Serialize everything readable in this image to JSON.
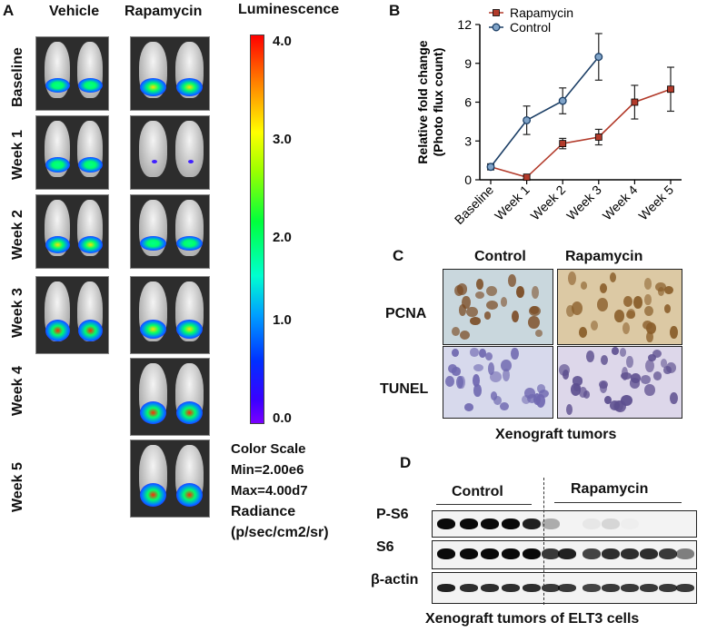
{
  "panel_a": {
    "letter": "A",
    "col_vehicle": "Vehicle",
    "col_rapamycin": "Rapamycin",
    "luminescence": "Luminescence",
    "rows": [
      "Baseline",
      "Week 1",
      "Week 2",
      "Week 3",
      "Week 4",
      "Week 5"
    ],
    "scale_ticks": [
      "4.0",
      "3.0",
      "2.0",
      "1.0",
      "0.0"
    ],
    "color_scale_title": "Color Scale",
    "min_text": "Min=2.00e6",
    "max_text": "Max=4.00d7",
    "radiance": "Radiance",
    "radiance_units": "(p/sec/cm2/sr)"
  },
  "panel_b": {
    "letter": "B"
  },
  "chart_data": {
    "type": "line",
    "ylabel": "Relative fold change (Photo flux count)",
    "categories": [
      "Baseline",
      "Week 1",
      "Week 2",
      "Week 3",
      "Week 4",
      "Week 5"
    ],
    "ylim": [
      0,
      12
    ],
    "yticks": [
      "0",
      "3",
      "6",
      "9",
      "12"
    ],
    "legend_position": "top-left",
    "series": [
      {
        "name": "Rapamycin",
        "color": "#b23a2a",
        "marker": "square",
        "values": [
          1.0,
          0.2,
          2.8,
          3.3,
          6.0,
          7.0
        ],
        "errors": [
          0.1,
          0.1,
          0.4,
          0.6,
          1.3,
          1.7
        ]
      },
      {
        "name": "Control",
        "color": "#1c3f66",
        "marker": "circle",
        "values": [
          1.0,
          4.6,
          6.1,
          9.5,
          null,
          null
        ],
        "errors": [
          0.1,
          1.1,
          1.0,
          1.8,
          null,
          null
        ]
      }
    ]
  },
  "panel_c": {
    "letter": "C",
    "col_control": "Control",
    "col_rapamycin": "Rapamycin",
    "row_pcna": "PCNA",
    "row_tunel": "TUNEL",
    "caption": "Xenograft tumors"
  },
  "panel_d": {
    "letter": "D",
    "group_control": "Control",
    "group_rapamycin": "Rapamycin",
    "rows": [
      "P-S6",
      "S6",
      "β-actin"
    ],
    "caption": "Xenograft tumors of ELT3 cells"
  }
}
